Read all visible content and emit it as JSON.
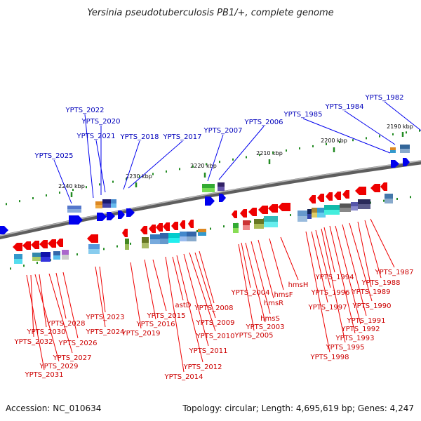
{
  "header": {
    "title": "Yersinia pseudotuberculosis PB1/+, complete genome"
  },
  "footer": {
    "accession": "Accession: NC_010634",
    "stats": "Topology: circular; Length: 4,695,619 bp; Genes: 4,247"
  },
  "colors": {
    "forward": "#0000ee",
    "reverse": "#ee0000",
    "backbone": "#7a7a7a",
    "tick": "#228b22"
  },
  "scale": {
    "ticks": [
      {
        "label": "2240 kbp",
        "kbp": 2240
      },
      {
        "label": "2230 kbp",
        "kbp": 2230
      },
      {
        "label": "2220 kbp",
        "kbp": 2220
      },
      {
        "label": "2210 kbp",
        "kbp": 2210
      },
      {
        "label": "2200 kbp",
        "kbp": 2200
      },
      {
        "label": "2190 kbp",
        "kbp": 2190
      }
    ]
  },
  "forward_genes": [
    "YPTS_2025",
    "YPTS_2022",
    "YPTS_2020",
    "YPTS_2021",
    "YPTS_2018",
    "YPTS_2017",
    "YPTS_2007",
    "YPTS_2006",
    "YPTS_1985",
    "YPTS_1984",
    "YPTS_1982"
  ],
  "reverse_genes": [
    "YPTS_2031",
    "YPTS_2032",
    "YPTS_2029",
    "YPTS_2030",
    "YPTS_2027",
    "YPTS_2028",
    "YPTS_2026",
    "YPTS_2024",
    "YPTS_2023",
    "YPTS_2019",
    "YPTS_2016",
    "YPTS_2015",
    "YPTS_2014",
    "astD",
    "YPTS_2012",
    "YPTS_2011",
    "YPTS_2010",
    "YPTS_2009",
    "YPTS_2008",
    "YPTS_2005",
    "YPTS_2004",
    "YPTS_2003",
    "hmsS",
    "hmsR",
    "hmsF",
    "hmsH",
    "YPTS_1998",
    "YPTS_1997",
    "YPTS_1996",
    "YPTS_1995",
    "YPTS_1994",
    "YPTS_1993",
    "YPTS_1992",
    "YPTS_1991",
    "YPTS_1990",
    "YPTS_1989",
    "YPTS_1988",
    "YPTS_1987"
  ]
}
